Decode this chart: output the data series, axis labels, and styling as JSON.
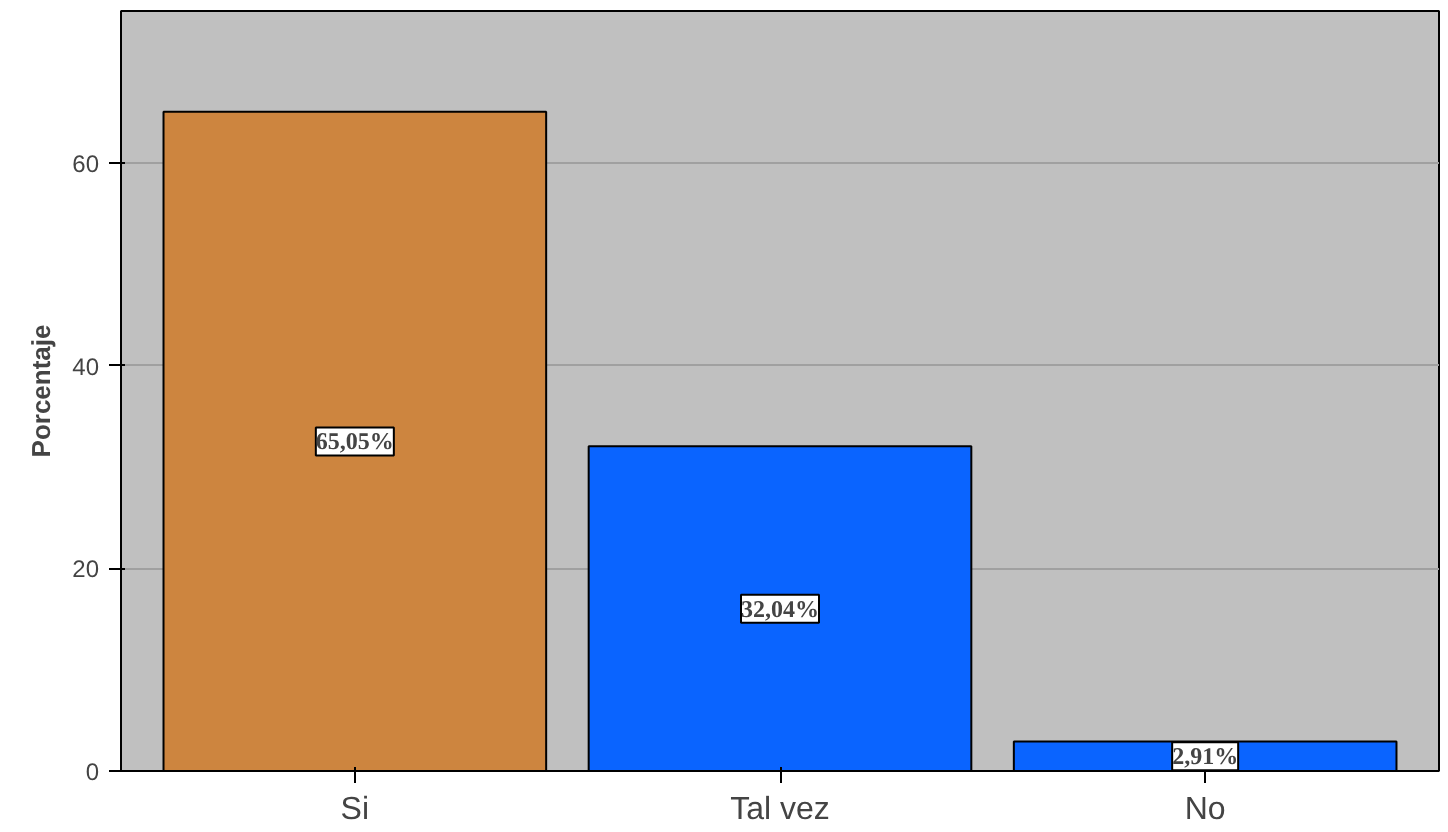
{
  "chart_data": {
    "type": "bar",
    "ylabel": "Porcentaje",
    "categories": [
      "Si",
      "Tal vez",
      "No"
    ],
    "values": [
      65.05,
      32.04,
      2.91
    ],
    "colors": [
      "#cd853f",
      "#0a64ff",
      "#0a64ff"
    ],
    "value_labels": [
      "65,05%",
      "32,04%",
      "2,91%"
    ],
    "ylim": [
      0,
      75
    ],
    "yticks": [
      0,
      20,
      40,
      60
    ],
    "grid": "y"
  }
}
